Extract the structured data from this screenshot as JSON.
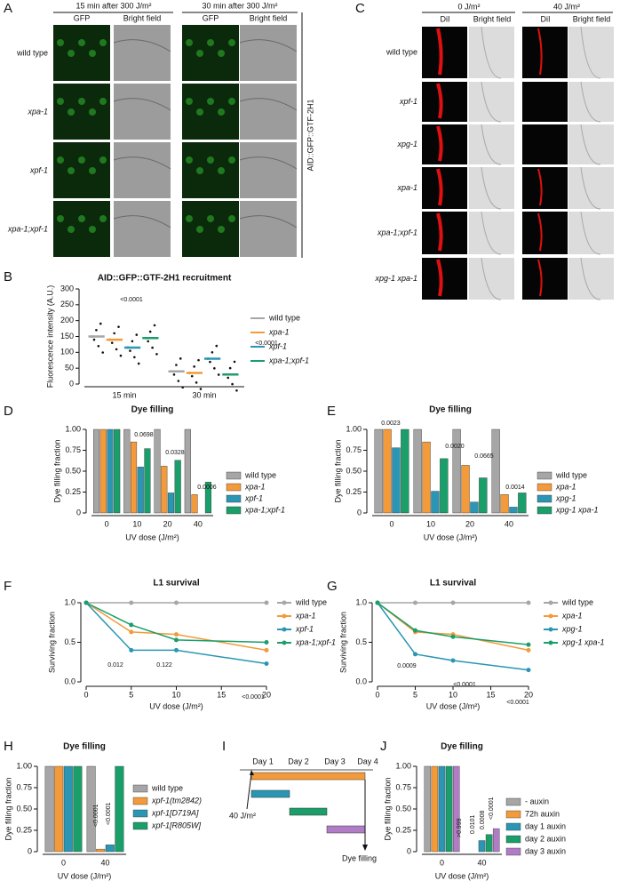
{
  "panel_labels": [
    "A",
    "B",
    "C",
    "D",
    "E",
    "F",
    "G",
    "H",
    "I",
    "J"
  ],
  "panel_a": {
    "conditions": [
      "15 min after 300 J/m²",
      "30 min after 300 J/m²"
    ],
    "columns": [
      "GFP",
      "Bright field"
    ],
    "rows": [
      "wild type",
      "xpa-1",
      "xpf-1",
      "xpa-1;xpf-1"
    ],
    "reporter": "AID::GFP::GTF-2H1"
  },
  "panel_c": {
    "conditions": [
      "0 J/m²",
      "40 J/m²"
    ],
    "columns": [
      "DiI",
      "Bright field"
    ],
    "rows": [
      "wild type",
      "xpf-1",
      "xpg-1",
      "xpa-1",
      "xpa-1;xpf-1",
      "xpg-1 xpa-1"
    ]
  },
  "panel_i": {
    "days": [
      "Day 1",
      "Day 2",
      "Day 3",
      "Day 4"
    ],
    "dose": "40 J/m²",
    "readout": "Dye filling"
  },
  "chart_data": [
    {
      "type": "dot",
      "title": "AID::GFP::GTF-2H1 recruitment",
      "ylabel": "Fluorescence intensity (A.U.)",
      "categories": [
        "15 min",
        "30  min"
      ],
      "ylim": [
        0,
        300
      ],
      "yticks": [
        0,
        50,
        100,
        150,
        200,
        250,
        300
      ],
      "series": [
        {
          "name": "wild type",
          "color": "#a6a6a6",
          "values": [
            150,
            40
          ]
        },
        {
          "name": "xpa-1",
          "color": "#f39a3a",
          "values": [
            140,
            35
          ]
        },
        {
          "name": "xpf-1",
          "color": "#2a96b3",
          "values": [
            115,
            80
          ]
        },
        {
          "name": "xpa-1;xpf-1",
          "color": "#1a9e6a",
          "values": [
            145,
            30
          ]
        }
      ],
      "annotations": [
        "<0.0001",
        "<0.0001"
      ]
    },
    {
      "type": "bar",
      "title": "Dye filling",
      "ylabel": "Dye filling fraction",
      "xlabel": "UV dose (J/m²)",
      "categories": [
        "0",
        "10",
        "20",
        "40"
      ],
      "ylim": [
        0,
        1
      ],
      "yticks": [
        0,
        0.25,
        {
          "value": 0.5,
          "label": "0.50"
        },
        0.75,
        {
          "value": 1,
          "label": "1.00"
        }
      ],
      "series": [
        {
          "name": "wild type",
          "color": "#a6a6a6",
          "values": [
            1,
            1,
            1,
            1
          ]
        },
        {
          "name": "xpa-1",
          "color": "#f39a3a",
          "values": [
            1,
            0.85,
            0.56,
            0.22
          ]
        },
        {
          "name": "xpf-1",
          "color": "#2a96b3",
          "values": [
            1,
            0.55,
            0.24,
            0
          ]
        },
        {
          "name": "xpa-1;xpf-1",
          "color": "#1a9e6a",
          "values": [
            1,
            0.77,
            0.63,
            0.37
          ]
        }
      ],
      "annotations": [
        "0.0698",
        "0.0328",
        "0.0006"
      ]
    },
    {
      "type": "bar",
      "title": "Dye filling",
      "ylabel": "Dye filling fraction",
      "xlabel": "UV dose (J/m²)",
      "categories": [
        "0",
        "10",
        "20",
        "40"
      ],
      "ylim": [
        0,
        1
      ],
      "yticks": [
        0,
        0.25,
        {
          "value": 0.5,
          "label": "0.50"
        },
        0.75,
        {
          "value": 1,
          "label": "1.00"
        }
      ],
      "series": [
        {
          "name": "wild type",
          "color": "#a6a6a6",
          "values": [
            1,
            1,
            1,
            1
          ]
        },
        {
          "name": "xpa-1",
          "color": "#f39a3a",
          "values": [
            1,
            0.85,
            0.57,
            0.22
          ]
        },
        {
          "name": "xpg-1",
          "color": "#2a96b3",
          "values": [
            0.78,
            0.26,
            0.13,
            0.07
          ]
        },
        {
          "name": "xpg-1 xpa-1",
          "color": "#1a9e6a",
          "values": [
            1,
            0.65,
            0.42,
            0.24
          ]
        }
      ],
      "annotations": [
        "0.0023",
        "0.0020",
        "0.0665",
        "0.0014"
      ]
    },
    {
      "type": "line",
      "title": "L1 survival",
      "ylabel": "Surviving fraction",
      "xlabel": "UV dose (J/m²)",
      "x": [
        0,
        5,
        10,
        20
      ],
      "xlim": [
        0,
        20
      ],
      "xticks": [
        0,
        5,
        10,
        15,
        20
      ],
      "ylim": [
        0,
        1
      ],
      "yticks": [
        {
          "value": 0,
          "label": "0.0"
        },
        0.5,
        {
          "value": 1,
          "label": "1.0"
        }
      ],
      "series": [
        {
          "name": "wild type",
          "color": "#a6a6a6",
          "values": [
            1,
            1,
            1,
            1
          ]
        },
        {
          "name": "xpa-1",
          "color": "#f39a3a",
          "values": [
            1,
            0.63,
            0.6,
            0.4
          ]
        },
        {
          "name": "xpf-1",
          "color": "#2a96b3",
          "values": [
            1,
            0.4,
            0.4,
            0.23
          ]
        },
        {
          "name": "xpa-1;xpf-1",
          "color": "#1a9e6a",
          "values": [
            1,
            0.72,
            0.53,
            0.5
          ]
        }
      ],
      "annotations": [
        "0.012",
        "0.122",
        "<0.0001"
      ]
    },
    {
      "type": "line",
      "title": "L1 survival",
      "ylabel": "Surviving fraction",
      "xlabel": "UV dose (J/m²)",
      "x": [
        0,
        5,
        10,
        20
      ],
      "xlim": [
        0,
        20
      ],
      "xticks": [
        0,
        5,
        10,
        15,
        20
      ],
      "ylim": [
        0,
        1
      ],
      "yticks": [
        {
          "value": 0,
          "label": "0.0"
        },
        0.5,
        {
          "value": 1,
          "label": "1.0"
        }
      ],
      "series": [
        {
          "name": "wild type",
          "color": "#a6a6a6",
          "values": [
            1,
            1,
            1,
            1
          ]
        },
        {
          "name": "xpa-1",
          "color": "#f39a3a",
          "values": [
            1,
            0.63,
            0.6,
            0.4
          ]
        },
        {
          "name": "xpg-1",
          "color": "#2a96b3",
          "values": [
            1,
            0.35,
            0.27,
            0.15
          ]
        },
        {
          "name": "xpg-1 xpa-1",
          "color": "#1a9e6a",
          "values": [
            1,
            0.65,
            0.57,
            0.47
          ]
        }
      ],
      "annotations": [
        "0.0009",
        "<0.0001",
        "<0.0001"
      ]
    },
    {
      "type": "bar",
      "title": "Dye filling",
      "ylabel": "Dye filling fraction",
      "xlabel": "UV dose (J/m²)",
      "categories": [
        "0",
        "40"
      ],
      "ylim": [
        0,
        1
      ],
      "yticks": [
        0,
        0.25,
        {
          "value": 0.5,
          "label": "0.50"
        },
        0.75,
        {
          "value": 1,
          "label": "1.00"
        }
      ],
      "series": [
        {
          "name": "wild type",
          "color": "#a6a6a6",
          "values": [
            1,
            1
          ]
        },
        {
          "name": "xpf-1(tm2842)",
          "color": "#f39a3a",
          "values": [
            1,
            0.03
          ]
        },
        {
          "name": "xpf-1[D719A]",
          "color": "#2a96b3",
          "values": [
            1,
            0.08
          ]
        },
        {
          "name": "xpf-1[R805W]",
          "color": "#1a9e6a",
          "values": [
            1,
            1
          ]
        }
      ],
      "annotations": [
        "<0.0001",
        "<0.0001"
      ]
    },
    {
      "type": "bar",
      "title": "Dye filling",
      "ylabel": "Dye filling fraction",
      "xlabel": "UV dose (J/m²)",
      "categories": [
        "0",
        "40"
      ],
      "ylim": [
        0,
        1
      ],
      "yticks": [
        0,
        0.25,
        {
          "value": 0.5,
          "label": "0.50"
        },
        0.75,
        {
          "value": 1,
          "label": "1.00"
        }
      ],
      "series": [
        {
          "name": "- auxin",
          "color": "#a6a6a6",
          "values": [
            1,
            0
          ]
        },
        {
          "name": "72h auxin",
          "color": "#f39a3a",
          "values": [
            1,
            0
          ]
        },
        {
          "name": "day 1 auxin",
          "color": "#2a96b3",
          "values": [
            1,
            0.13
          ]
        },
        {
          "name": "day 2 auxin",
          "color": "#1a9e6a",
          "values": [
            1,
            0.2
          ]
        },
        {
          "name": "day 3 auxin",
          "color": "#b07cc6",
          "values": [
            1,
            0.27
          ]
        }
      ],
      "annotations": [
        ">0.999",
        "0.0101",
        "0.0008",
        "<0.0001"
      ]
    }
  ]
}
